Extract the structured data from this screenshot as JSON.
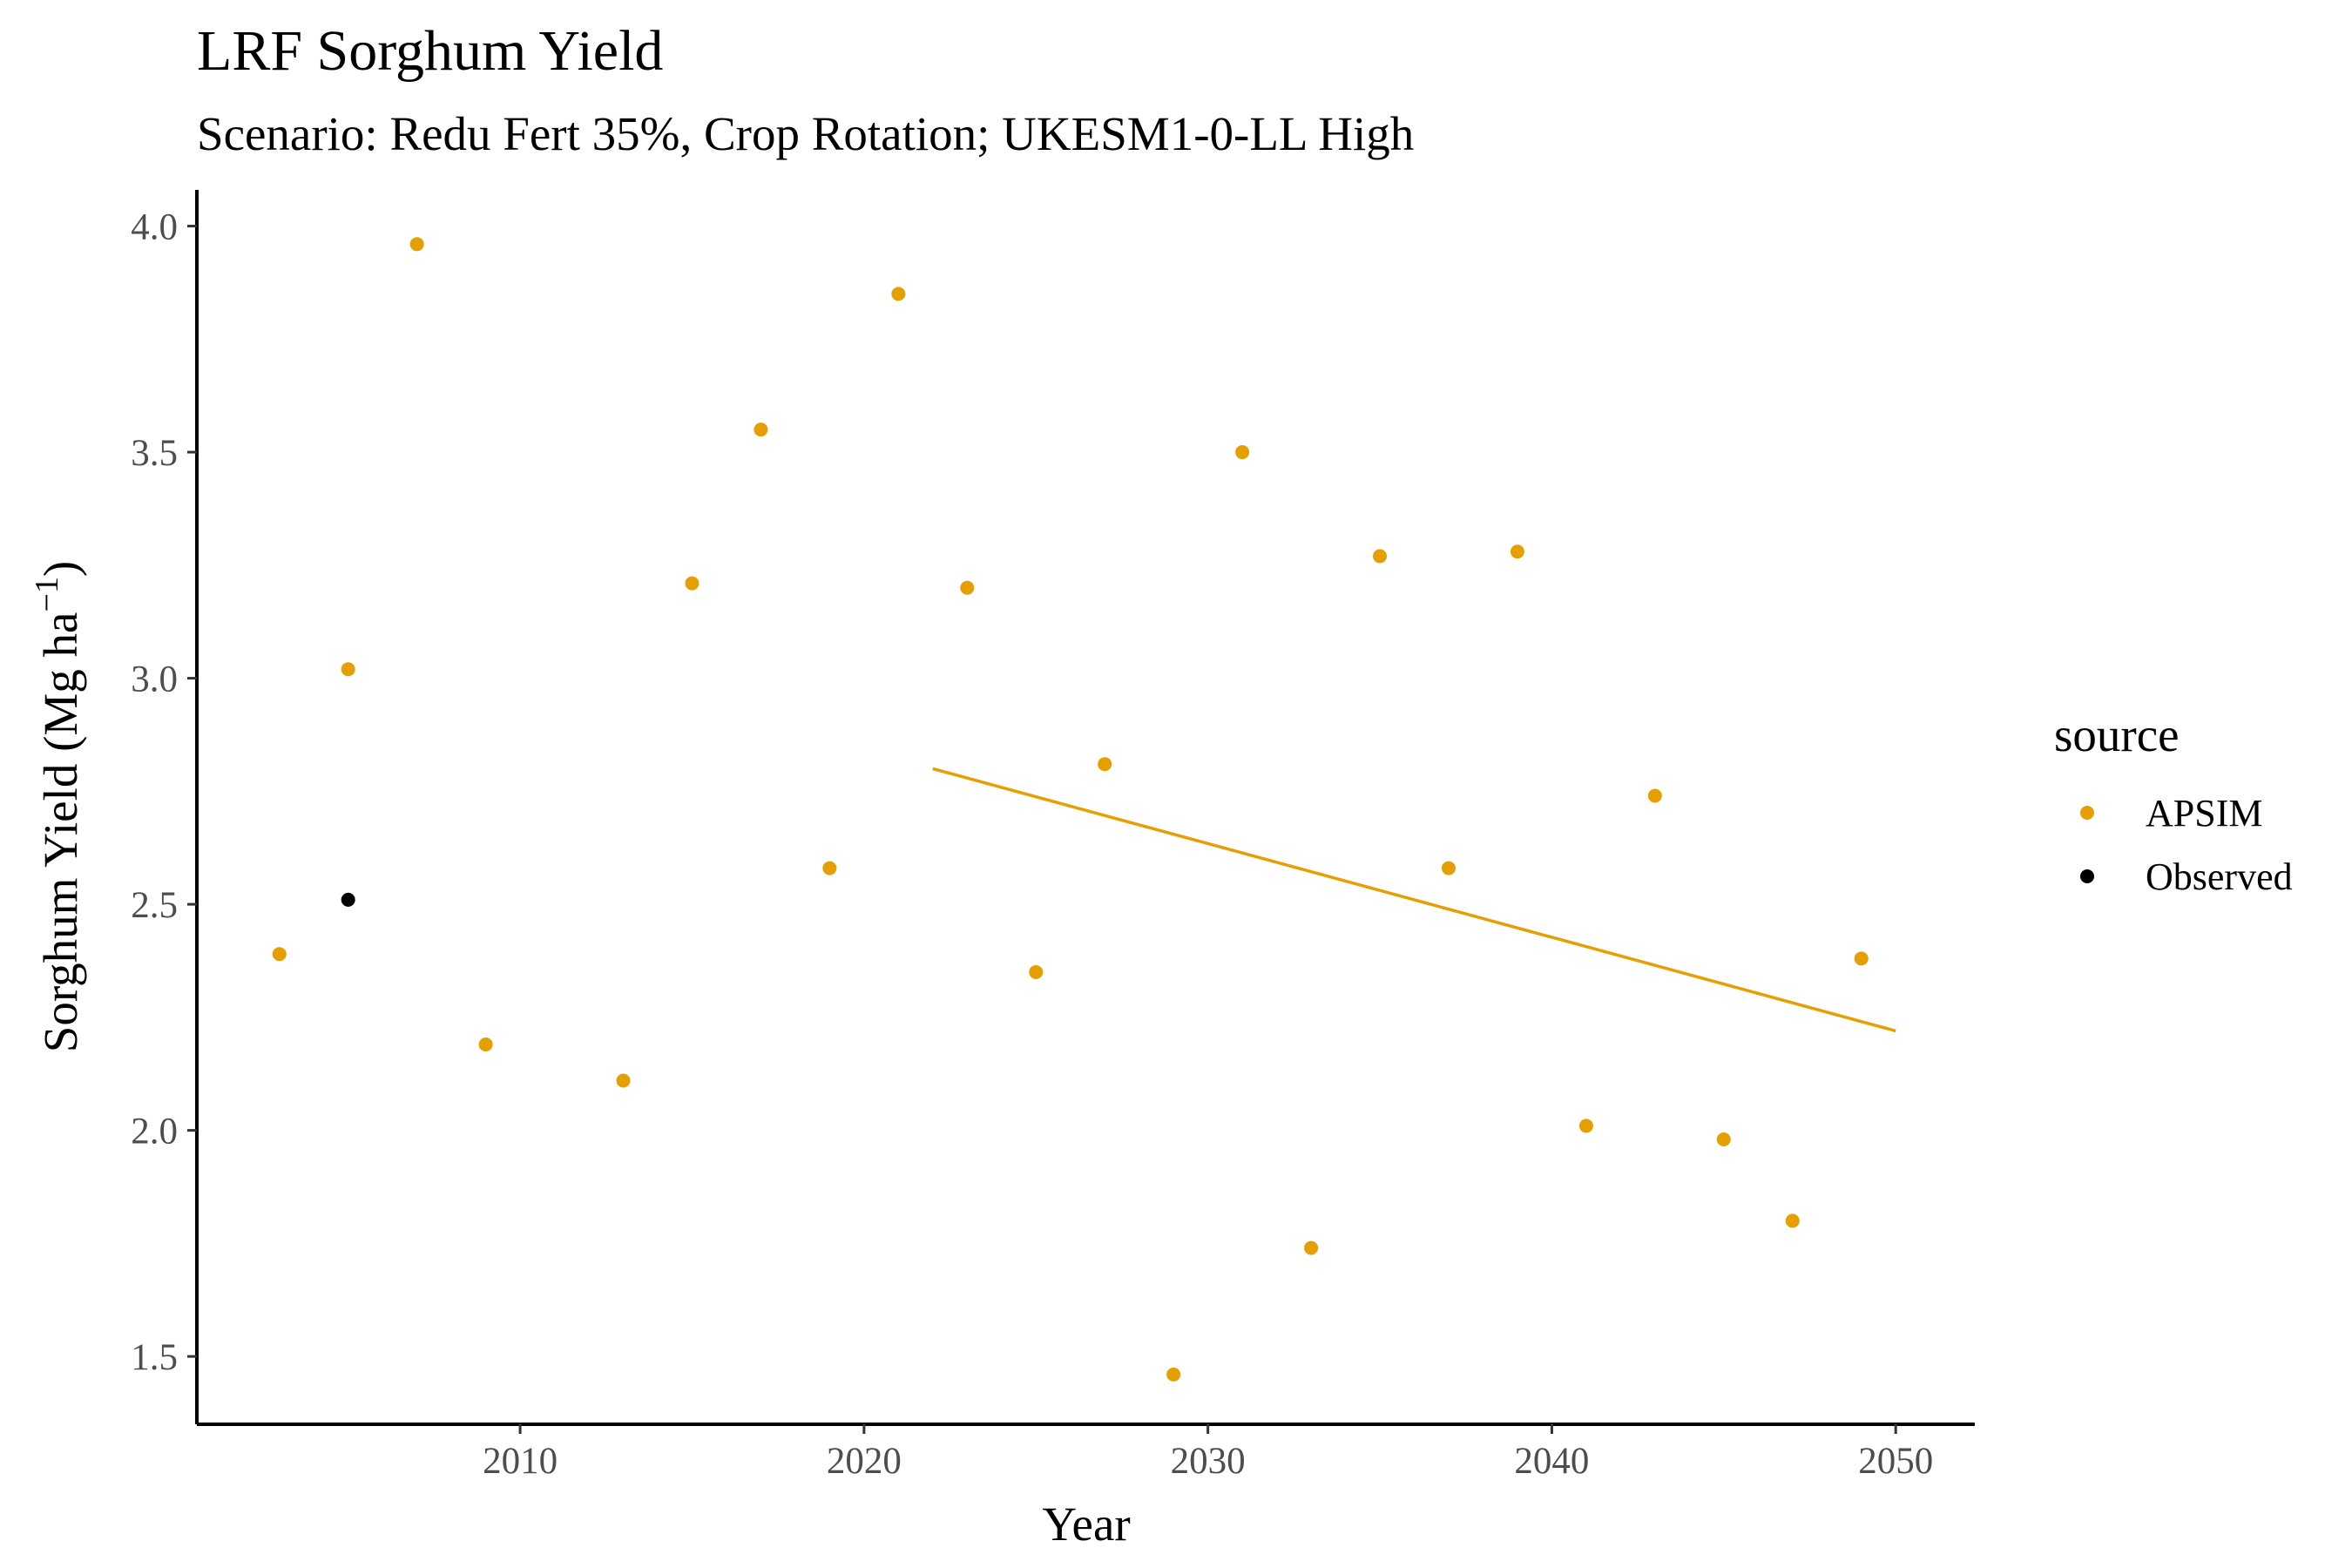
{
  "chart_data": {
    "type": "scatter",
    "title": "LRF Sorghum Yield",
    "subtitle": "Scenario: Redu Fert 35%, Crop Rotation; UKESM1-0-LL High",
    "xlabel": "Year",
    "ylabel": "Sorghum Yield (Mg ha",
    "ylabel_sup": "−1",
    "ylabel_close": ")",
    "xlim": [
      2000.6,
      2052.3
    ],
    "ylim": [
      1.35,
      4.08
    ],
    "x_ticks": [
      2010,
      2020,
      2030,
      2040,
      2050
    ],
    "y_ticks": [
      1.5,
      2.0,
      2.5,
      3.0,
      3.5,
      4.0
    ],
    "y_tick_labels": [
      "1.5",
      "2.0",
      "2.5",
      "3.0",
      "3.5",
      "4.0"
    ],
    "grid": false,
    "legend": {
      "title": "source",
      "position": "right",
      "entries": [
        {
          "label": "APSIM",
          "color": "#E69F00"
        },
        {
          "label": "Observed",
          "color": "#000000"
        }
      ]
    },
    "series": [
      {
        "name": "APSIM",
        "color": "#E69F00",
        "points": [
          [
            2003,
            2.39
          ],
          [
            2005,
            3.02
          ],
          [
            2007,
            3.96
          ],
          [
            2009,
            2.19
          ],
          [
            2013,
            2.11
          ],
          [
            2015,
            3.21
          ],
          [
            2017,
            3.55
          ],
          [
            2019,
            2.58
          ],
          [
            2021,
            3.85
          ],
          [
            2023,
            3.2
          ],
          [
            2025,
            2.35
          ],
          [
            2027,
            2.81
          ],
          [
            2029,
            1.46
          ],
          [
            2031,
            3.5
          ],
          [
            2033,
            1.74
          ],
          [
            2035,
            3.27
          ],
          [
            2037,
            2.58
          ],
          [
            2039,
            3.28
          ],
          [
            2041,
            2.01
          ],
          [
            2043,
            2.74
          ],
          [
            2045,
            1.98
          ],
          [
            2047,
            1.8
          ],
          [
            2049,
            2.38
          ]
        ]
      },
      {
        "name": "Observed",
        "color": "#000000",
        "points": [
          [
            2005,
            2.51
          ]
        ]
      }
    ],
    "trend_line": {
      "series": "APSIM",
      "color": "#E69F00",
      "from": [
        2022,
        2.8
      ],
      "to": [
        2050,
        2.22
      ]
    }
  }
}
